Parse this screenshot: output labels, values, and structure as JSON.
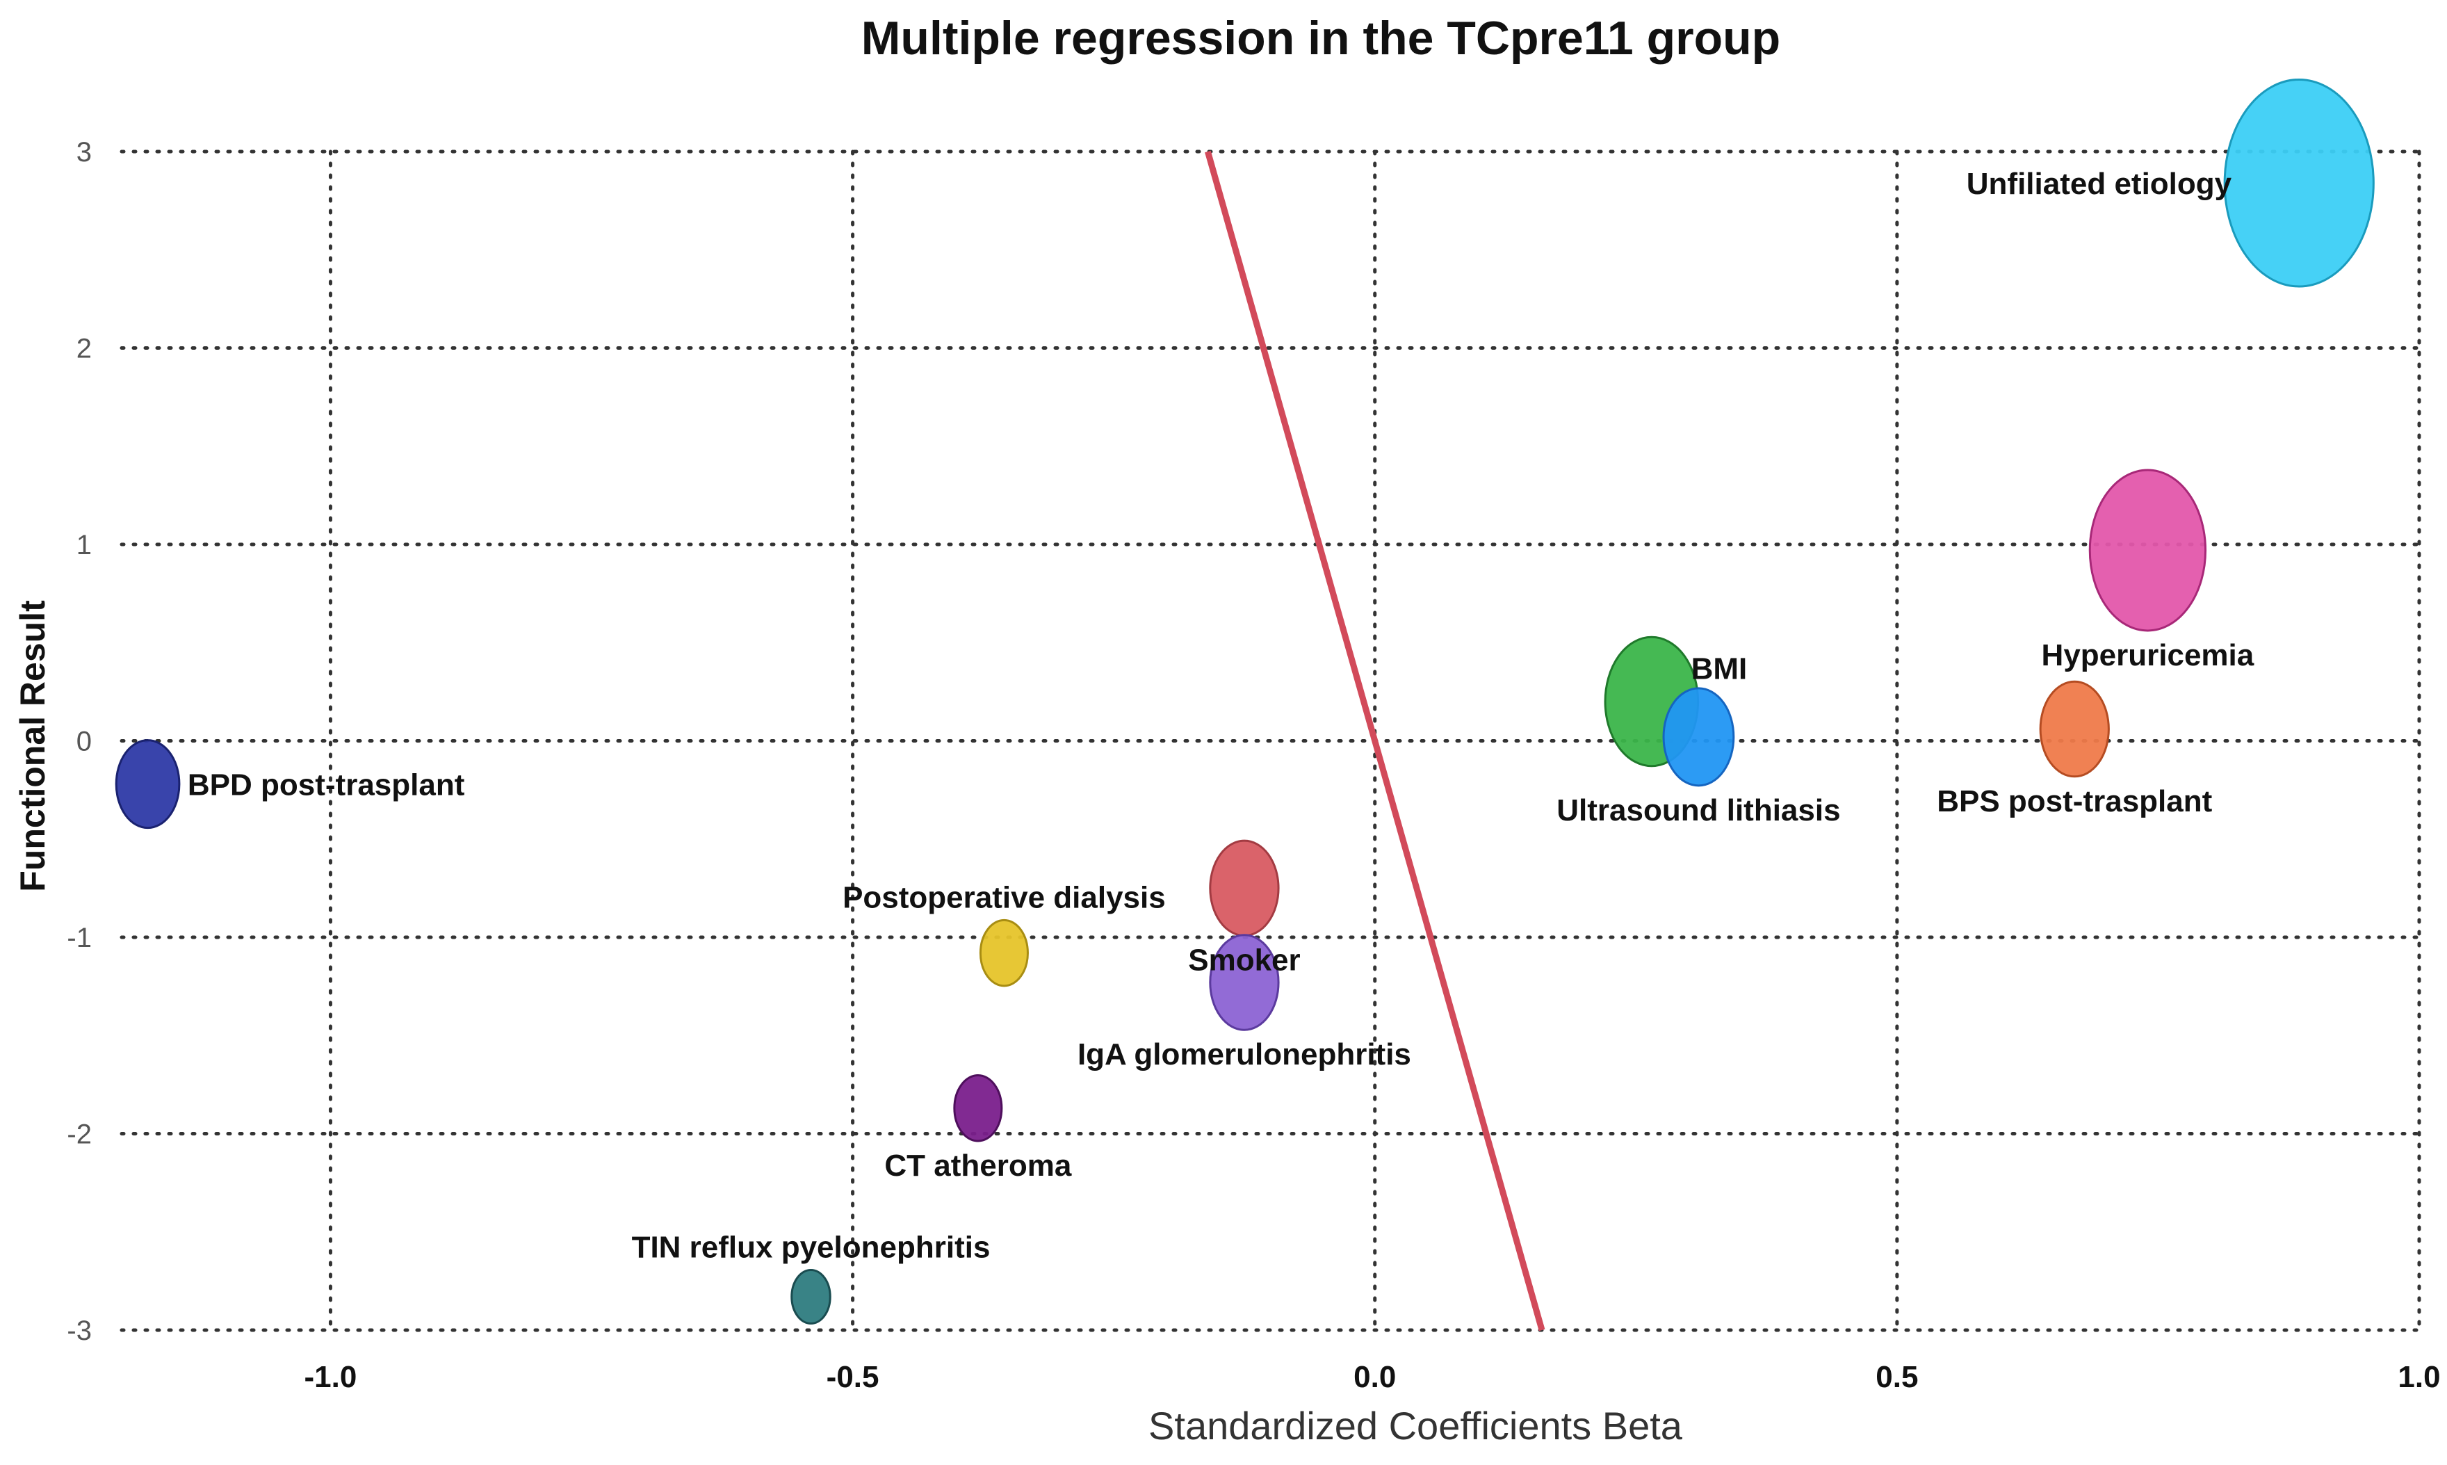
{
  "chart_data": {
    "type": "scatter",
    "title": "Multiple regression in the TCpre11 group",
    "xlabel": "Standardized Coefficients Beta",
    "ylabel": "Functional Result",
    "xlim": [
      -1.2,
      1.0
    ],
    "ylim": [
      -3,
      3
    ],
    "x_ticks": [
      -1.0,
      -0.5,
      0.0,
      0.5,
      1.0
    ],
    "x_tick_labels": [
      "-1.0",
      "-0.5",
      "0.0",
      "0.5",
      "1.0"
    ],
    "y_ticks": [
      3,
      2,
      1,
      0,
      -1,
      -2,
      -3
    ],
    "y_tick_labels": [
      "3",
      "2",
      "1",
      "0",
      "-1",
      "-2",
      "-3"
    ],
    "grid": true,
    "trend_line": {
      "from": [
        -0.16,
        3.0
      ],
      "to": [
        0.16,
        -3.0
      ],
      "color": "#d24a5a"
    },
    "points": [
      {
        "name": "BPD post-trasplant",
        "x": -1.175,
        "y": -0.22,
        "size": 0.36,
        "color": "#2e3aa6",
        "stroke": "#1a2270",
        "label_pos": "right"
      },
      {
        "name": "Postoperative dialysis",
        "x": -0.355,
        "y": -1.08,
        "size": 0.27,
        "color": "#e6c42a",
        "stroke": "#a88d12",
        "label_pos": "above"
      },
      {
        "name": "Smoker",
        "x": -0.125,
        "y": -0.75,
        "size": 0.39,
        "color": "#d85b62",
        "stroke": "#a33b42",
        "label_pos": "below"
      },
      {
        "name": "IgA glomerulonephritis",
        "x": -0.125,
        "y": -1.23,
        "size": 0.39,
        "color": "#8c63d4",
        "stroke": "#5b3a9e",
        "label_pos": "below"
      },
      {
        "name": "CT atheroma",
        "x": -0.38,
        "y": -1.87,
        "size": 0.27,
        "color": "#7a1f8c",
        "stroke": "#4e0f5c",
        "label_pos": "below"
      },
      {
        "name": "TIN reflux pyelonephritis",
        "x": -0.54,
        "y": -2.83,
        "size": 0.22,
        "color": "#2e7c80",
        "stroke": "#1a4c50",
        "label_pos": "above"
      },
      {
        "name": "BMI",
        "x": 0.265,
        "y": 0.2,
        "size": 0.53,
        "color": "#3bb54a",
        "stroke": "#1f7a2b",
        "label_pos": "right-top"
      },
      {
        "name": "Ultrasound lithiasis",
        "x": 0.31,
        "y": 0.02,
        "size": 0.4,
        "color": "#2196f3",
        "stroke": "#1565c0",
        "label_pos": "below"
      },
      {
        "name": "Hyperuricemia",
        "x": 0.74,
        "y": 0.97,
        "size": 0.66,
        "color": "#e357ab",
        "stroke": "#a82878",
        "label_pos": "below"
      },
      {
        "name": "BPS post-trasplant",
        "x": 0.67,
        "y": 0.06,
        "size": 0.39,
        "color": "#ef7a4a",
        "stroke": "#b54c22",
        "label_pos": "below"
      },
      {
        "name": "Unfiliated etiology",
        "x": 0.885,
        "y": 2.84,
        "size": 0.85,
        "color": "#3ccff5",
        "stroke": "#1a9bbd",
        "label_pos": "left"
      }
    ]
  }
}
